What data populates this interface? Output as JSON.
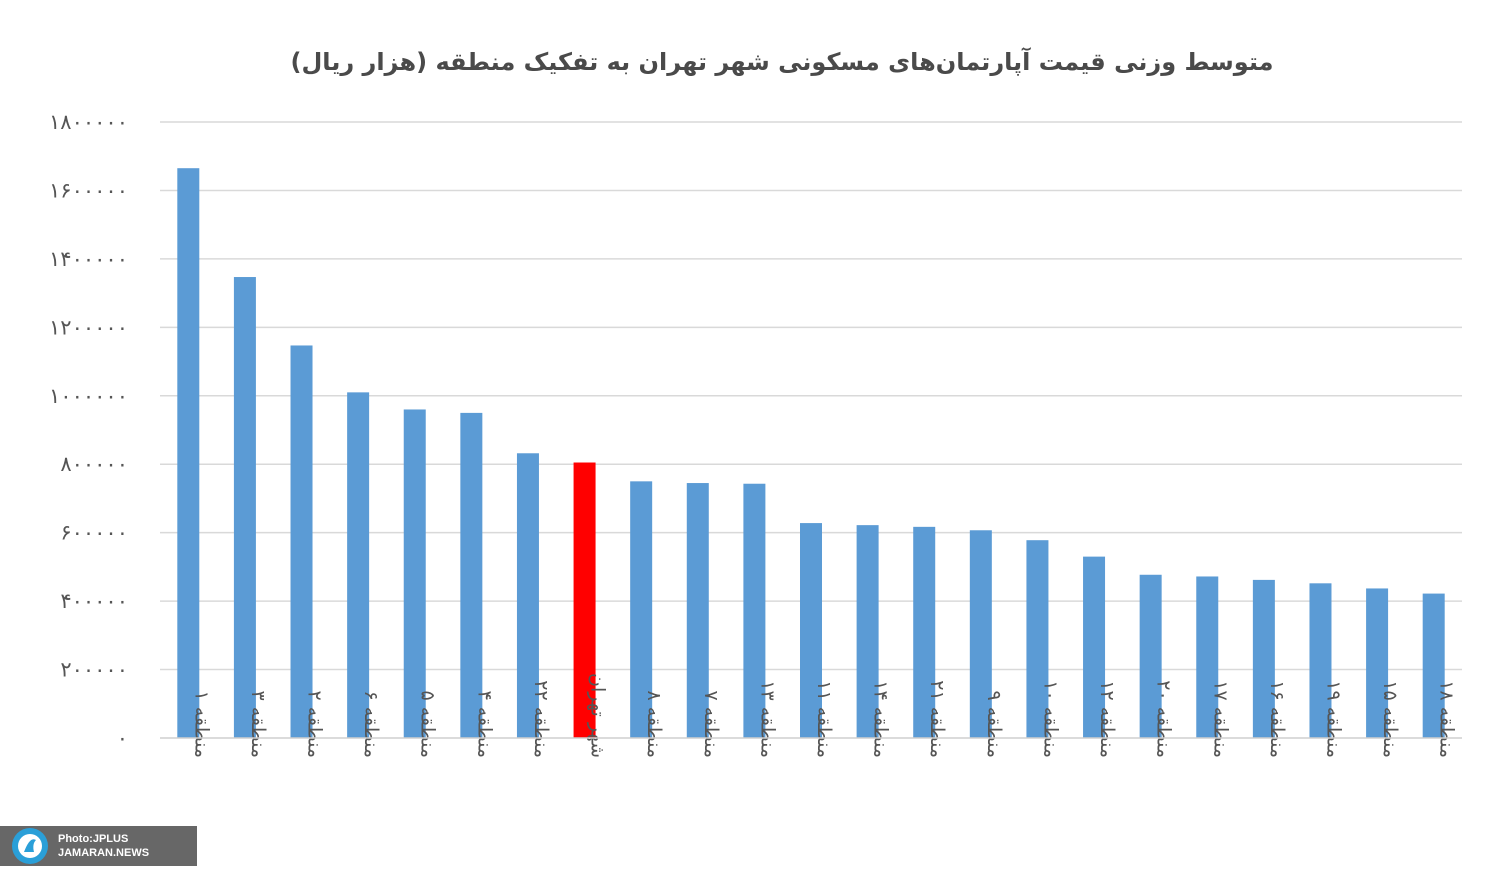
{
  "chart_data": {
    "type": "bar",
    "title": "متوسط وزنی قیمت آپارتمان‌های مسکونی شهر تهران به تفکیک منطقه (هزار ریال)",
    "xlabel": "",
    "ylabel": "",
    "ylim": [
      0,
      1800000
    ],
    "yticks": [
      0,
      200000,
      400000,
      600000,
      800000,
      1000000,
      1200000,
      1400000,
      1600000,
      1800000
    ],
    "ytick_labels": [
      "۰",
      "۲۰۰۰۰۰",
      "۴۰۰۰۰۰",
      "۶۰۰۰۰۰",
      "۸۰۰۰۰۰",
      "۱۰۰۰۰۰۰",
      "۱۲۰۰۰۰۰",
      "۱۴۰۰۰۰۰",
      "۱۶۰۰۰۰۰",
      "۱۸۰۰۰۰۰"
    ],
    "grid": true,
    "categories": [
      "منطقه ۱",
      "منطقه ۳",
      "منطقه ۲",
      "منطقه ۶",
      "منطقه ۵",
      "منطقه ۴",
      "منطقه ۲۲",
      "شهر تهران",
      "منطقه ۸",
      "منطقه ۷",
      "منطقه ۱۳",
      "منطقه ۱۱",
      "منطقه ۱۴",
      "منطقه ۲۱",
      "منطقه ۹",
      "منطقه ۱۰",
      "منطقه ۱۲",
      "منطقه ۲۰",
      "منطقه ۱۷",
      "منطقه ۱۶",
      "منطقه ۱۹",
      "منطقه ۱۵",
      "منطقه ۱۸"
    ],
    "values": [
      1665000,
      1347000,
      1147000,
      1010000,
      960000,
      950000,
      832000,
      805000,
      750000,
      745000,
      743000,
      628000,
      622000,
      617000,
      607000,
      578000,
      530000,
      477000,
      472000,
      462000,
      452000,
      437000,
      422000
    ],
    "colors": {
      "bar": "#5b9bd5",
      "highlight": "#ff0000",
      "highlight_category": "شهر تهران"
    }
  },
  "watermark": {
    "line1": "Photo:JPLUS",
    "line2": "JAMARAN.NEWS",
    "icon": "jamaran-logo-icon"
  }
}
